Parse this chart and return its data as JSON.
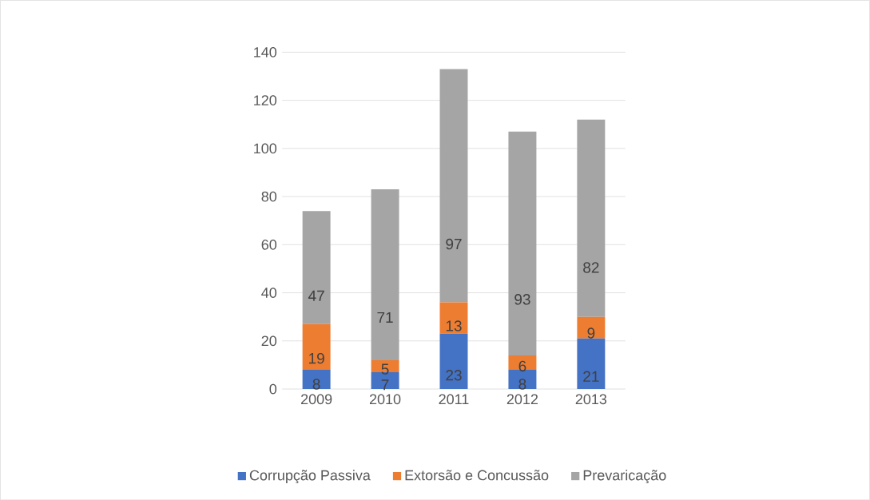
{
  "chart_data": {
    "type": "bar",
    "stacked": true,
    "categories": [
      "2009",
      "2010",
      "2011",
      "2012",
      "2013"
    ],
    "series": [
      {
        "name": "Corrupção Passiva",
        "color": "#4472c4",
        "values": [
          8,
          7,
          23,
          8,
          21
        ]
      },
      {
        "name": "Extorsão e Concussão",
        "color": "#ed7d31",
        "values": [
          19,
          5,
          13,
          6,
          9
        ]
      },
      {
        "name": "Prevaricação",
        "color": "#a5a5a5",
        "values": [
          47,
          71,
          97,
          93,
          82
        ]
      }
    ],
    "ylim": [
      0,
      140
    ],
    "yticks": [
      0,
      20,
      40,
      60,
      80,
      100,
      120,
      140
    ],
    "grid": "y",
    "legend": "bottom",
    "data_labels": true
  }
}
